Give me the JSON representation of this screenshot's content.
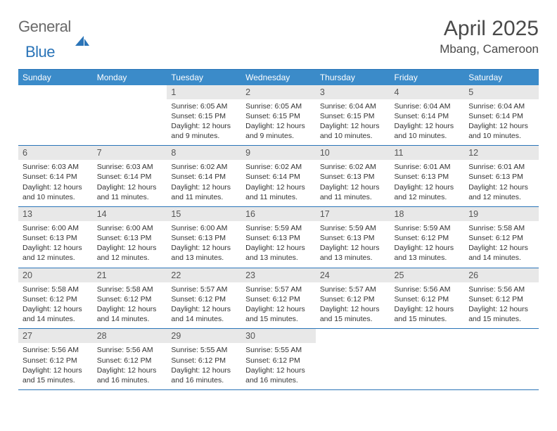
{
  "logo": {
    "general": "General",
    "blue": "Blue"
  },
  "title": "April 2025",
  "location": "Mbang, Cameroon",
  "colors": {
    "header_bg": "#3b8bc9",
    "border": "#2a74b8",
    "daynum_bg": "#e8e8e8",
    "text": "#333333"
  },
  "weekdays": [
    "Sunday",
    "Monday",
    "Tuesday",
    "Wednesday",
    "Thursday",
    "Friday",
    "Saturday"
  ],
  "weeks": [
    [
      null,
      null,
      {
        "d": "1",
        "sr": "6:05 AM",
        "ss": "6:15 PM",
        "dl": "12 hours and 9 minutes."
      },
      {
        "d": "2",
        "sr": "6:05 AM",
        "ss": "6:15 PM",
        "dl": "12 hours and 9 minutes."
      },
      {
        "d": "3",
        "sr": "6:04 AM",
        "ss": "6:15 PM",
        "dl": "12 hours and 10 minutes."
      },
      {
        "d": "4",
        "sr": "6:04 AM",
        "ss": "6:14 PM",
        "dl": "12 hours and 10 minutes."
      },
      {
        "d": "5",
        "sr": "6:04 AM",
        "ss": "6:14 PM",
        "dl": "12 hours and 10 minutes."
      }
    ],
    [
      {
        "d": "6",
        "sr": "6:03 AM",
        "ss": "6:14 PM",
        "dl": "12 hours and 10 minutes."
      },
      {
        "d": "7",
        "sr": "6:03 AM",
        "ss": "6:14 PM",
        "dl": "12 hours and 11 minutes."
      },
      {
        "d": "8",
        "sr": "6:02 AM",
        "ss": "6:14 PM",
        "dl": "12 hours and 11 minutes."
      },
      {
        "d": "9",
        "sr": "6:02 AM",
        "ss": "6:14 PM",
        "dl": "12 hours and 11 minutes."
      },
      {
        "d": "10",
        "sr": "6:02 AM",
        "ss": "6:13 PM",
        "dl": "12 hours and 11 minutes."
      },
      {
        "d": "11",
        "sr": "6:01 AM",
        "ss": "6:13 PM",
        "dl": "12 hours and 12 minutes."
      },
      {
        "d": "12",
        "sr": "6:01 AM",
        "ss": "6:13 PM",
        "dl": "12 hours and 12 minutes."
      }
    ],
    [
      {
        "d": "13",
        "sr": "6:00 AM",
        "ss": "6:13 PM",
        "dl": "12 hours and 12 minutes."
      },
      {
        "d": "14",
        "sr": "6:00 AM",
        "ss": "6:13 PM",
        "dl": "12 hours and 12 minutes."
      },
      {
        "d": "15",
        "sr": "6:00 AM",
        "ss": "6:13 PM",
        "dl": "12 hours and 13 minutes."
      },
      {
        "d": "16",
        "sr": "5:59 AM",
        "ss": "6:13 PM",
        "dl": "12 hours and 13 minutes."
      },
      {
        "d": "17",
        "sr": "5:59 AM",
        "ss": "6:13 PM",
        "dl": "12 hours and 13 minutes."
      },
      {
        "d": "18",
        "sr": "5:59 AM",
        "ss": "6:12 PM",
        "dl": "12 hours and 13 minutes."
      },
      {
        "d": "19",
        "sr": "5:58 AM",
        "ss": "6:12 PM",
        "dl": "12 hours and 14 minutes."
      }
    ],
    [
      {
        "d": "20",
        "sr": "5:58 AM",
        "ss": "6:12 PM",
        "dl": "12 hours and 14 minutes."
      },
      {
        "d": "21",
        "sr": "5:58 AM",
        "ss": "6:12 PM",
        "dl": "12 hours and 14 minutes."
      },
      {
        "d": "22",
        "sr": "5:57 AM",
        "ss": "6:12 PM",
        "dl": "12 hours and 14 minutes."
      },
      {
        "d": "23",
        "sr": "5:57 AM",
        "ss": "6:12 PM",
        "dl": "12 hours and 15 minutes."
      },
      {
        "d": "24",
        "sr": "5:57 AM",
        "ss": "6:12 PM",
        "dl": "12 hours and 15 minutes."
      },
      {
        "d": "25",
        "sr": "5:56 AM",
        "ss": "6:12 PM",
        "dl": "12 hours and 15 minutes."
      },
      {
        "d": "26",
        "sr": "5:56 AM",
        "ss": "6:12 PM",
        "dl": "12 hours and 15 minutes."
      }
    ],
    [
      {
        "d": "27",
        "sr": "5:56 AM",
        "ss": "6:12 PM",
        "dl": "12 hours and 15 minutes."
      },
      {
        "d": "28",
        "sr": "5:56 AM",
        "ss": "6:12 PM",
        "dl": "12 hours and 16 minutes."
      },
      {
        "d": "29",
        "sr": "5:55 AM",
        "ss": "6:12 PM",
        "dl": "12 hours and 16 minutes."
      },
      {
        "d": "30",
        "sr": "5:55 AM",
        "ss": "6:12 PM",
        "dl": "12 hours and 16 minutes."
      },
      null,
      null,
      null
    ]
  ],
  "labels": {
    "sunrise": "Sunrise: ",
    "sunset": "Sunset: ",
    "daylight": "Daylight: "
  }
}
